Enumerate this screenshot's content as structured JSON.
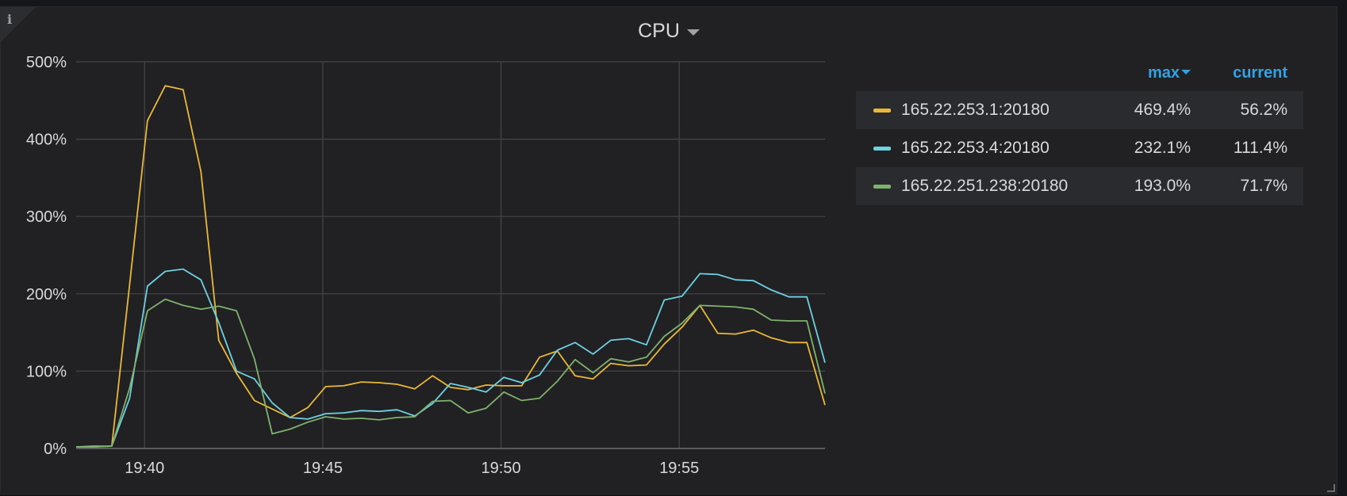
{
  "panel": {
    "title": "CPU",
    "info_icon": "info-icon",
    "dropdown_icon": "chevron-down-icon"
  },
  "legend": {
    "header_max": "max",
    "header_current": "current",
    "sort_icon": "sort-desc-icon",
    "rows": [
      {
        "name": "165.22.253.1:20180",
        "max": "469.4%",
        "current": "56.2%",
        "color": "#eab839"
      },
      {
        "name": "165.22.253.4:20180",
        "max": "232.1%",
        "current": "111.4%",
        "color": "#6ed0e0"
      },
      {
        "name": "165.22.251.238:20180",
        "max": "193.0%",
        "current": "71.7%",
        "color": "#7eb26d"
      }
    ]
  },
  "chart_data": {
    "type": "line",
    "title": "CPU",
    "xlabel": "",
    "ylabel": "",
    "ylim": [
      0,
      500
    ],
    "y_ticks": [
      "0%",
      "100%",
      "200%",
      "300%",
      "400%",
      "500%"
    ],
    "x_ticks": [
      "19:40",
      "19:45",
      "19:50",
      "19:55"
    ],
    "x_tick_minutes": [
      40,
      45,
      50,
      55
    ],
    "xlim_minutes": [
      38.08,
      59.09
    ],
    "grid": true,
    "legend_position": "right",
    "x": [
      38.08,
      38.58,
      39.08,
      39.58,
      40.08,
      40.58,
      41.08,
      41.58,
      42.08,
      42.58,
      43.08,
      43.58,
      44.08,
      44.58,
      45.08,
      45.58,
      46.08,
      46.58,
      47.08,
      47.58,
      48.08,
      48.58,
      49.08,
      49.58,
      50.08,
      50.58,
      51.08,
      51.58,
      52.08,
      52.58,
      53.08,
      53.58,
      54.08,
      54.58,
      55.08,
      55.58,
      56.08,
      56.58,
      57.08,
      57.58,
      58.08,
      58.58,
      59.09
    ],
    "series": [
      {
        "name": "165.22.253.1:20180",
        "color": "#eab839",
        "values": [
          2,
          3,
          3,
          212,
          424,
          469,
          464,
          358,
          140,
          97,
          62,
          51,
          40,
          53,
          80,
          81,
          86,
          85,
          83,
          77,
          94,
          79,
          76,
          82,
          81,
          81,
          118,
          126,
          94,
          90,
          110,
          107,
          108,
          135,
          157,
          185,
          149,
          148,
          153,
          143,
          137,
          137,
          56
        ]
      },
      {
        "name": "165.22.253.4:20180",
        "color": "#6ed0e0",
        "values": [
          2,
          2,
          3,
          65,
          210,
          229,
          232,
          218,
          163,
          100,
          90,
          59,
          40,
          38,
          45,
          46,
          49,
          48,
          50,
          42,
          58,
          84,
          79,
          73,
          92,
          85,
          95,
          127,
          137,
          122,
          140,
          142,
          134,
          192,
          197,
          226,
          225,
          218,
          217,
          205,
          196,
          196,
          111
        ]
      },
      {
        "name": "165.22.251.238:20180",
        "color": "#7eb26d",
        "values": [
          2,
          2,
          3,
          78,
          178,
          193,
          185,
          180,
          184,
          178,
          116,
          19,
          25,
          34,
          41,
          38,
          39,
          37,
          40,
          41,
          61,
          62,
          46,
          52,
          73,
          62,
          65,
          87,
          115,
          98,
          116,
          112,
          118,
          145,
          162,
          185,
          184,
          183,
          180,
          166,
          165,
          165,
          71
        ]
      }
    ]
  }
}
